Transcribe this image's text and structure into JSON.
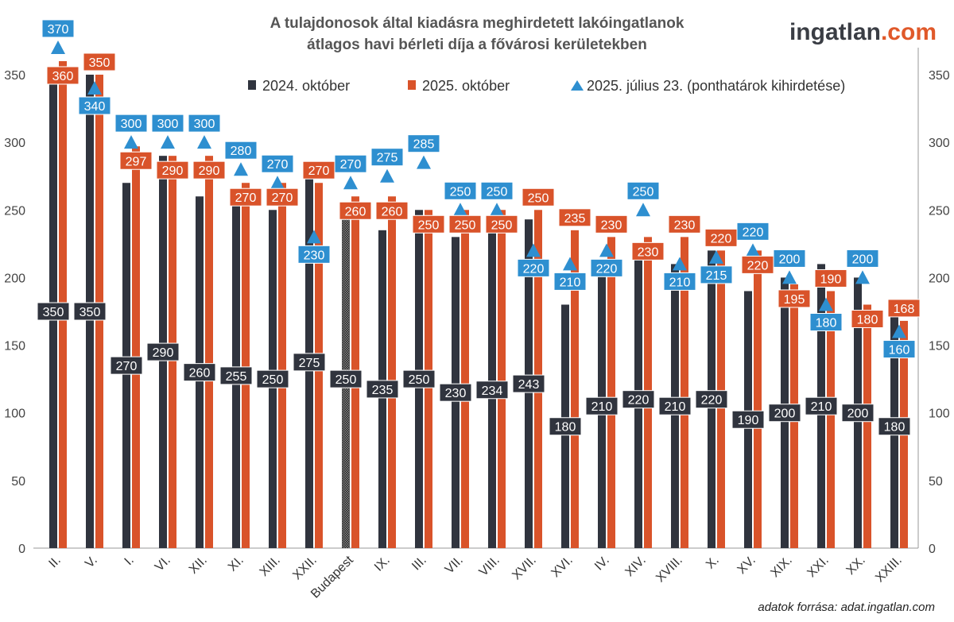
{
  "chart_data": {
    "type": "bar",
    "title": [
      "A tulajdonosok által kiadásra meghirdetett lakóingatlanok",
      "átlagos havi bérleti díja a fővárosi kerületekben"
    ],
    "categories": [
      "II.",
      "V.",
      "I.",
      "VI.",
      "XII.",
      "XI.",
      "XIII.",
      "XXII.",
      "Budapest",
      "IX.",
      "III.",
      "VII.",
      "VIII.",
      "XVII.",
      "XVI.",
      "IV.",
      "XIV.",
      "XVIII.",
      "X.",
      "XV.",
      "XIX.",
      "XXI.",
      "XX.",
      "XXIII."
    ],
    "series": [
      {
        "name": "2024. október",
        "kind": "bar",
        "color": "#30343e",
        "values": [
          350,
          350,
          270,
          290,
          260,
          255,
          250,
          275,
          250,
          235,
          250,
          230,
          234,
          243,
          180,
          210,
          220,
          210,
          220,
          190,
          200,
          210,
          200,
          180
        ]
      },
      {
        "name": "2025. október",
        "kind": "bar",
        "color": "#d9532a",
        "values": [
          360,
          350,
          297,
          290,
          290,
          270,
          270,
          270,
          260,
          260,
          250,
          250,
          250,
          250,
          235,
          230,
          230,
          230,
          220,
          220,
          195,
          190,
          180,
          168
        ]
      },
      {
        "name": "2025. július 23. (ponthatárok kihirdetése)",
        "kind": "marker-triangle",
        "color": "#2e8fd0",
        "values": [
          370,
          340,
          300,
          300,
          300,
          280,
          270,
          230,
          270,
          275,
          285,
          250,
          250,
          220,
          210,
          220,
          250,
          210,
          215,
          220,
          200,
          180,
          200,
          160
        ]
      }
    ],
    "yticks": [
      0,
      50,
      100,
      150,
      200,
      250,
      300,
      350
    ],
    "ylim": [
      0,
      350
    ],
    "axes": "left and right",
    "grid": false,
    "legend": "top",
    "highlighted_category": "Budapest"
  },
  "logo": {
    "main": "ingatlan",
    "suffix": ".com"
  },
  "source": "adatok forrása: adat.ingatlan.com"
}
